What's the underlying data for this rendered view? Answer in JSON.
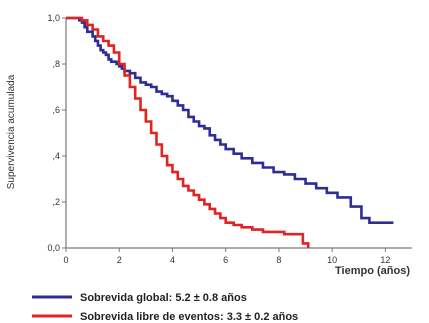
{
  "chart_data": {
    "type": "line",
    "title": "",
    "xlabel": "Tiempo (años)",
    "ylabel": "Supervivencia acumulada",
    "xlim": [
      0,
      13
    ],
    "ylim": [
      0,
      1
    ],
    "x_ticks": [
      0,
      2,
      4,
      6,
      8,
      10,
      12
    ],
    "y_ticks": [
      0,
      0.2,
      0.4,
      0.6,
      0.8,
      1
    ],
    "x_tick_labels": [
      "0",
      "2",
      "4",
      "6",
      "8",
      "10",
      "12"
    ],
    "y_tick_labels": [
      "0,0",
      ",2",
      ",4",
      ",6",
      ",8",
      "1,0"
    ],
    "grid": false,
    "legend_position": "bottom",
    "series": [
      {
        "name": "Sobrevida global: 5.2 ± 0.8 años",
        "color": "#2d2d96",
        "x": [
          0,
          0.5,
          0.6,
          0.7,
          0.8,
          1.0,
          1.1,
          1.2,
          1.3,
          1.4,
          1.5,
          1.6,
          1.7,
          1.9,
          2.0,
          2.1,
          2.2,
          2.4,
          2.6,
          2.8,
          3.0,
          3.2,
          3.4,
          3.6,
          3.8,
          4.0,
          4.2,
          4.4,
          4.6,
          4.8,
          5.0,
          5.2,
          5.4,
          5.6,
          5.8,
          6.0,
          6.3,
          6.6,
          7.0,
          7.4,
          7.8,
          8.2,
          8.6,
          9.0,
          9.4,
          9.8,
          10.2,
          10.7,
          11.1,
          11.4,
          12.3
        ],
        "y": [
          1.0,
          0.99,
          0.98,
          0.96,
          0.94,
          0.92,
          0.9,
          0.88,
          0.86,
          0.85,
          0.84,
          0.82,
          0.81,
          0.8,
          0.79,
          0.78,
          0.77,
          0.76,
          0.74,
          0.72,
          0.71,
          0.7,
          0.68,
          0.67,
          0.66,
          0.64,
          0.62,
          0.6,
          0.57,
          0.55,
          0.53,
          0.52,
          0.49,
          0.47,
          0.45,
          0.43,
          0.41,
          0.39,
          0.37,
          0.35,
          0.33,
          0.32,
          0.3,
          0.28,
          0.26,
          0.24,
          0.22,
          0.18,
          0.13,
          0.11,
          0.11
        ]
      },
      {
        "name": "Sobrevida libre de eventos: 3.3 ± 0.2 años",
        "color": "#e02424",
        "x": [
          0,
          0.6,
          0.8,
          1.0,
          1.2,
          1.4,
          1.6,
          1.8,
          2.0,
          2.2,
          2.4,
          2.6,
          2.8,
          3.0,
          3.2,
          3.4,
          3.6,
          3.8,
          4.0,
          4.2,
          4.4,
          4.6,
          4.8,
          5.0,
          5.2,
          5.4,
          5.6,
          5.8,
          6.0,
          6.3,
          6.6,
          7.0,
          7.4,
          7.8,
          8.2,
          8.6,
          8.9,
          9.1
        ],
        "y": [
          1.0,
          0.99,
          0.97,
          0.95,
          0.92,
          0.9,
          0.88,
          0.85,
          0.8,
          0.75,
          0.7,
          0.65,
          0.6,
          0.55,
          0.5,
          0.45,
          0.4,
          0.36,
          0.33,
          0.3,
          0.27,
          0.25,
          0.23,
          0.21,
          0.19,
          0.17,
          0.15,
          0.13,
          0.11,
          0.1,
          0.09,
          0.08,
          0.07,
          0.07,
          0.06,
          0.06,
          0.02,
          0.0
        ]
      }
    ]
  }
}
